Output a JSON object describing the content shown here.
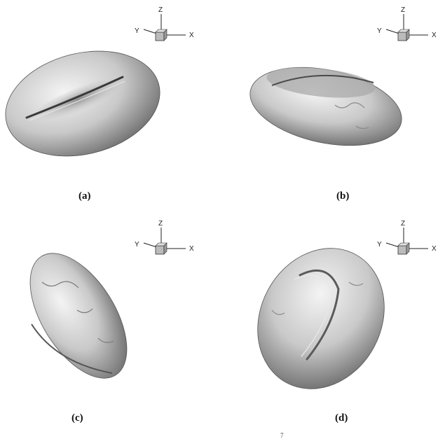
{
  "panels": [
    {
      "id": "a",
      "label": "(a)",
      "axes": {
        "z": "Z",
        "y": "Y",
        "x": "X"
      }
    },
    {
      "id": "b",
      "label": "(b)",
      "axes": {
        "z": "Z",
        "y": "Y",
        "x": "X"
      }
    },
    {
      "id": "c",
      "label": "(c)",
      "axes": {
        "z": "Z",
        "y": "Y",
        "x": "X"
      }
    },
    {
      "id": "d",
      "label": "(d)",
      "axes": {
        "z": "Z",
        "y": "Y",
        "x": "X"
      }
    }
  ],
  "footer_mark": "7"
}
